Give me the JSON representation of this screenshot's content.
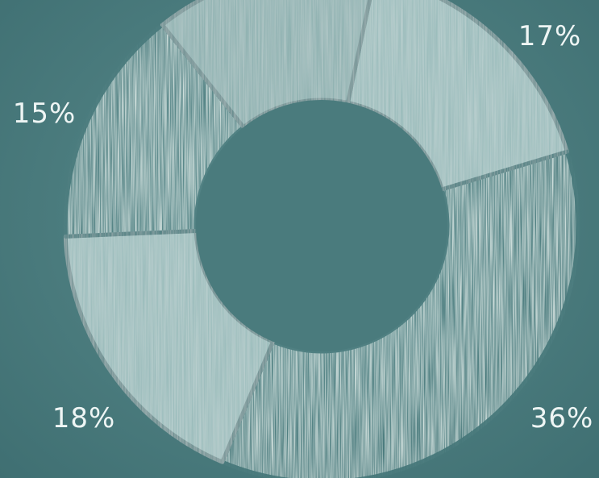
{
  "chart_data": {
    "type": "pie",
    "title": "",
    "style": "donut",
    "slices": [
      {
        "label": "17%",
        "value": 17,
        "color": "#8fb6b5",
        "texture": "brushed"
      },
      {
        "label": "36%",
        "value": 36,
        "color": "#d9e6e3",
        "texture": "chalk"
      },
      {
        "label": "18%",
        "value": 18,
        "color": "#8fb6b5",
        "texture": "brushed"
      },
      {
        "label": "15%",
        "value": 15,
        "color": "#d9e6e3",
        "texture": "chalk"
      },
      {
        "label": "",
        "value": 14,
        "color": "#7fa9a8",
        "texture": "brushed"
      }
    ],
    "background_color": "#4b7c7e",
    "hole_color": "#4a7b7d"
  }
}
